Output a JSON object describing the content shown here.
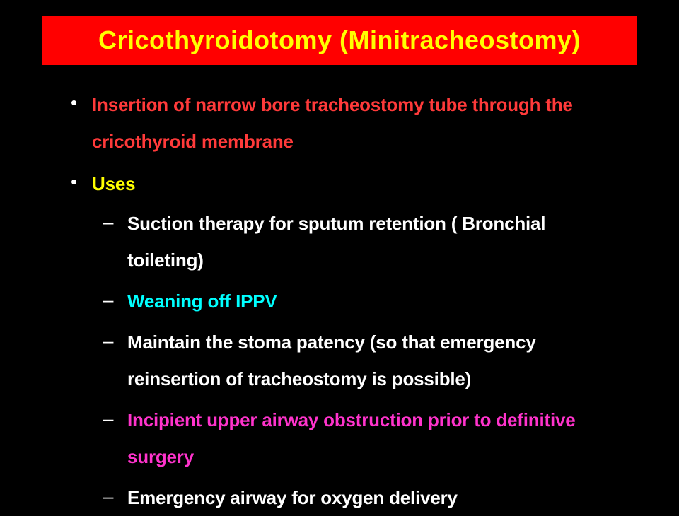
{
  "title": "Cricothyroidotomy (Minitracheostomy)",
  "colors": {
    "title_bg": "#ff0000",
    "title_text": "#ffff00",
    "red": "#ff3a3a",
    "yellow": "#ffff00",
    "white": "#ffffff",
    "cyan": "#00ffff",
    "magenta": "#ff33cc"
  },
  "bullets": [
    {
      "text": "Insertion of narrow bore tracheostomy tube through the cricothyroid membrane",
      "color": "#ff3a3a",
      "bullet_color": "#ffffff"
    },
    {
      "text": "Uses",
      "color": "#ffff00",
      "bullet_color": "#ffffff",
      "children": [
        {
          "text": "Suction therapy for sputum retention ( Bronchial toileting)",
          "color": "#ffffff",
          "dash_color": "#ffffff"
        },
        {
          "text": "Weaning off IPPV",
          "color": "#00ffff",
          "dash_color": "#ffffff"
        },
        {
          "text": "Maintain the stoma patency (so that emergency reinsertion of tracheostomy is possible)",
          "color": "#ffffff",
          "dash_color": "#ffffff"
        },
        {
          "text": "Incipient  upper airway obstruction prior to definitive surgery",
          "color": "#ff33cc",
          "dash_color": "#ffffff"
        },
        {
          "text": "Emergency airway for  oxygen delivery",
          "color": "#ffffff",
          "dash_color": "#ffffff"
        }
      ]
    }
  ]
}
